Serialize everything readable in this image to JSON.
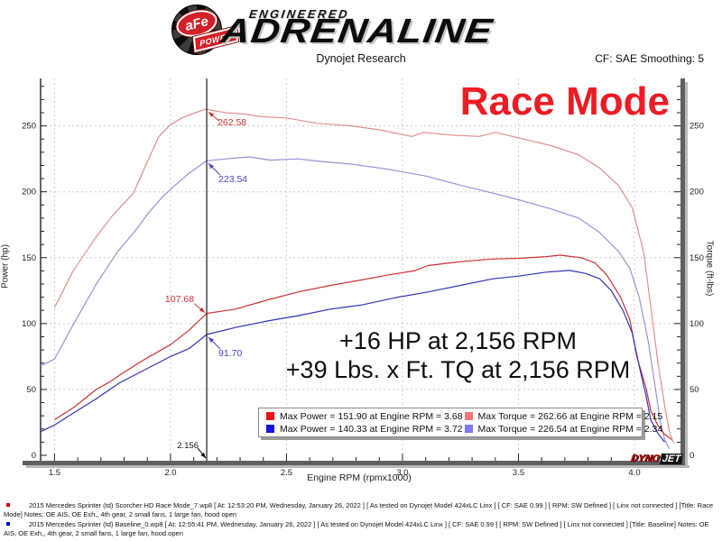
{
  "header": {
    "brand": {
      "badge_top": "aFe",
      "badge_reg": "®",
      "badge_bottom": "POWER",
      "line1": "ENGINEERED",
      "line2": "ADRENALINE"
    },
    "subtitle": "Dynojet Research",
    "cf_label": "CF: SAE Smoothing: 5"
  },
  "chart_data": {
    "type": "line",
    "title": "Race Mode",
    "title_color": "#ed1c24",
    "xlabel": "Engine RPM (rpmx1000)",
    "ylabel_left": "Power (hp)",
    "ylabel_right": "Torque (ft-lbs)",
    "xlim": [
      1.44,
      4.21
    ],
    "ylim": [
      0,
      286
    ],
    "x_ticks": [
      1.5,
      2.0,
      2.5,
      3.0,
      3.5,
      4.0
    ],
    "y_ticks": [
      0,
      50,
      100,
      150,
      200,
      250
    ],
    "grid": true,
    "legend_position": "bottom-center",
    "cursor": {
      "rpm": 2.156,
      "label": "2.156"
    },
    "series": [
      {
        "name": "Race Mode - Torque",
        "axis": "torque",
        "color": "#e08e8e",
        "points": [
          [
            1.5,
            112
          ],
          [
            1.58,
            140
          ],
          [
            1.68,
            166
          ],
          [
            1.75,
            182
          ],
          [
            1.84,
            199
          ],
          [
            1.89,
            219
          ],
          [
            1.95,
            242
          ],
          [
            2.0,
            251
          ],
          [
            2.06,
            257
          ],
          [
            2.15,
            262.7
          ],
          [
            2.24,
            260
          ],
          [
            2.32,
            259
          ],
          [
            2.39,
            257
          ],
          [
            2.5,
            256
          ],
          [
            2.63,
            252
          ],
          [
            2.78,
            250
          ],
          [
            2.9,
            247
          ],
          [
            3.04,
            242
          ],
          [
            3.09,
            245
          ],
          [
            3.21,
            243
          ],
          [
            3.33,
            242
          ],
          [
            3.4,
            245
          ],
          [
            3.5,
            241
          ],
          [
            3.64,
            235
          ],
          [
            3.76,
            228
          ],
          [
            3.85,
            218
          ],
          [
            3.93,
            205
          ],
          [
            3.99,
            188
          ],
          [
            4.04,
            154
          ],
          [
            4.07,
            113
          ],
          [
            4.1,
            72
          ],
          [
            4.13,
            38
          ],
          [
            4.15,
            18
          ],
          [
            4.17,
            9
          ]
        ]
      },
      {
        "name": "Baseline - Torque",
        "axis": "torque",
        "color": "#9494da",
        "points": [
          [
            1.44,
            68
          ],
          [
            1.5,
            73
          ],
          [
            1.58,
            99
          ],
          [
            1.68,
            130
          ],
          [
            1.77,
            154
          ],
          [
            1.85,
            171
          ],
          [
            1.91,
            185
          ],
          [
            1.97,
            197
          ],
          [
            2.02,
            205
          ],
          [
            2.08,
            214
          ],
          [
            2.156,
            223.5
          ],
          [
            2.24,
            225
          ],
          [
            2.34,
            226.5
          ],
          [
            2.43,
            224
          ],
          [
            2.55,
            225
          ],
          [
            2.65,
            223
          ],
          [
            2.78,
            221
          ],
          [
            2.94,
            217
          ],
          [
            3.1,
            212
          ],
          [
            3.25,
            205
          ],
          [
            3.39,
            199
          ],
          [
            3.5,
            194
          ],
          [
            3.64,
            187
          ],
          [
            3.76,
            180
          ],
          [
            3.85,
            169
          ],
          [
            3.93,
            155
          ],
          [
            3.98,
            142
          ],
          [
            4.02,
            120
          ],
          [
            4.06,
            86
          ],
          [
            4.09,
            51
          ],
          [
            4.11,
            27
          ],
          [
            4.13,
            12
          ],
          [
            4.15,
            5
          ]
        ]
      },
      {
        "name": "Race Mode - Power",
        "axis": "power",
        "color": "#cc3333",
        "points": [
          [
            1.5,
            27
          ],
          [
            1.58,
            36
          ],
          [
            1.68,
            50
          ],
          [
            1.74,
            56
          ],
          [
            1.79,
            62
          ],
          [
            1.89,
            73
          ],
          [
            2.0,
            84
          ],
          [
            2.08,
            95
          ],
          [
            2.156,
            107.7
          ],
          [
            2.28,
            111
          ],
          [
            2.42,
            118
          ],
          [
            2.55,
            124
          ],
          [
            2.69,
            129
          ],
          [
            2.82,
            133
          ],
          [
            2.94,
            137
          ],
          [
            3.05,
            140
          ],
          [
            3.11,
            144
          ],
          [
            3.25,
            147
          ],
          [
            3.39,
            149
          ],
          [
            3.5,
            149.5
          ],
          [
            3.62,
            150.8
          ],
          [
            3.68,
            151.9
          ],
          [
            3.77,
            150
          ],
          [
            3.83,
            146
          ],
          [
            3.88,
            137
          ],
          [
            3.94,
            120
          ],
          [
            3.98,
            103
          ],
          [
            4.01,
            75
          ],
          [
            4.05,
            51
          ],
          [
            4.07,
            34
          ],
          [
            4.1,
            23
          ],
          [
            4.13,
            16
          ],
          [
            4.16,
            12
          ]
        ]
      },
      {
        "name": "Baseline - Power",
        "axis": "power",
        "color": "#3333b8",
        "points": [
          [
            1.44,
            18
          ],
          [
            1.5,
            23
          ],
          [
            1.58,
            32
          ],
          [
            1.68,
            43
          ],
          [
            1.78,
            55
          ],
          [
            1.89,
            65
          ],
          [
            2.0,
            75
          ],
          [
            2.08,
            81
          ],
          [
            2.156,
            91.7
          ],
          [
            2.28,
            97
          ],
          [
            2.42,
            102
          ],
          [
            2.55,
            106
          ],
          [
            2.69,
            111
          ],
          [
            2.82,
            114
          ],
          [
            2.98,
            120
          ],
          [
            3.11,
            124
          ],
          [
            3.25,
            129
          ],
          [
            3.39,
            134
          ],
          [
            3.5,
            136
          ],
          [
            3.62,
            139
          ],
          [
            3.72,
            140.3
          ],
          [
            3.79,
            138
          ],
          [
            3.85,
            134
          ],
          [
            3.9,
            125
          ],
          [
            3.95,
            110
          ],
          [
            3.99,
            93
          ],
          [
            4.02,
            68
          ],
          [
            4.05,
            45
          ],
          [
            4.07,
            27
          ],
          [
            4.1,
            17
          ],
          [
            4.13,
            10
          ]
        ]
      }
    ],
    "annotations": [
      {
        "label": "262.58",
        "rpm": 2.156,
        "value": 262.58,
        "color": "#cc3333",
        "placement": "below-right"
      },
      {
        "label": "223.54",
        "rpm": 2.156,
        "value": 223.54,
        "color": "#4646c8",
        "placement": "below-right-far"
      },
      {
        "label": "107.68",
        "rpm": 2.156,
        "value": 107.68,
        "color": "#cc3333",
        "placement": "above-left"
      },
      {
        "label": "91.70",
        "rpm": 2.156,
        "value": 91.7,
        "color": "#4646c8",
        "placement": "below-right-far"
      }
    ]
  },
  "overlay": {
    "gain_line1": "+16 HP at 2,156 RPM",
    "gain_line2": "+39 Lbs. x Ft. TQ at 2,156 RPM"
  },
  "legend": {
    "items": [
      {
        "label": "Max Power = 151.90 at Engine RPM = 3.68",
        "color": "#ee1111"
      },
      {
        "label": "Max Torque = 262.66 at Engine RPM = 2.15",
        "color": "#f47878"
      },
      {
        "label": "Max Power = 140.33 at Engine RPM = 3.72",
        "color": "#1414e0"
      },
      {
        "label": "Max Torque = 226.54 at Engine RPM = 2.34",
        "color": "#7b7bee"
      }
    ]
  },
  "dynojet_logo": {
    "part1": "DYNO",
    "part2": "JET"
  },
  "footer": {
    "runs": [
      {
        "bullet_color": "#cc0000",
        "text": "2015 Mercedes Sprinter (td) Scorcher HD Race Mode_7.wp8 [ At: 12:53:20 PM, Wednesday, January 26, 2022 ] [ As tested on Dynojet Model 424xLC Linx ] [ CF: SAE 0.99 ] [ RPM: SW Defined ] [ Linx not connected ] [Title: Race Mode]  Notes: OE AIS, OE Exh,, 4th gear, 2 small fans, 1 large fan, hood open"
      },
      {
        "bullet_color": "#0000cc",
        "text": "2015 Mercedes Sprinter (td) Baseline_0.wp8 [ At: 12:55:41 PM, Wednesday, January 26, 2022 ] [ As tested on Dynojet Model 424xLC Linx ] [ CF: SAE 0.99 ] [ RPM: SW Defined ] [ Linx not connected ] [Title: Baseline]  Notes: OE AIS, OE Exh,, 4th gear, 2 small fans, 1 large fan, hood open"
      }
    ]
  }
}
